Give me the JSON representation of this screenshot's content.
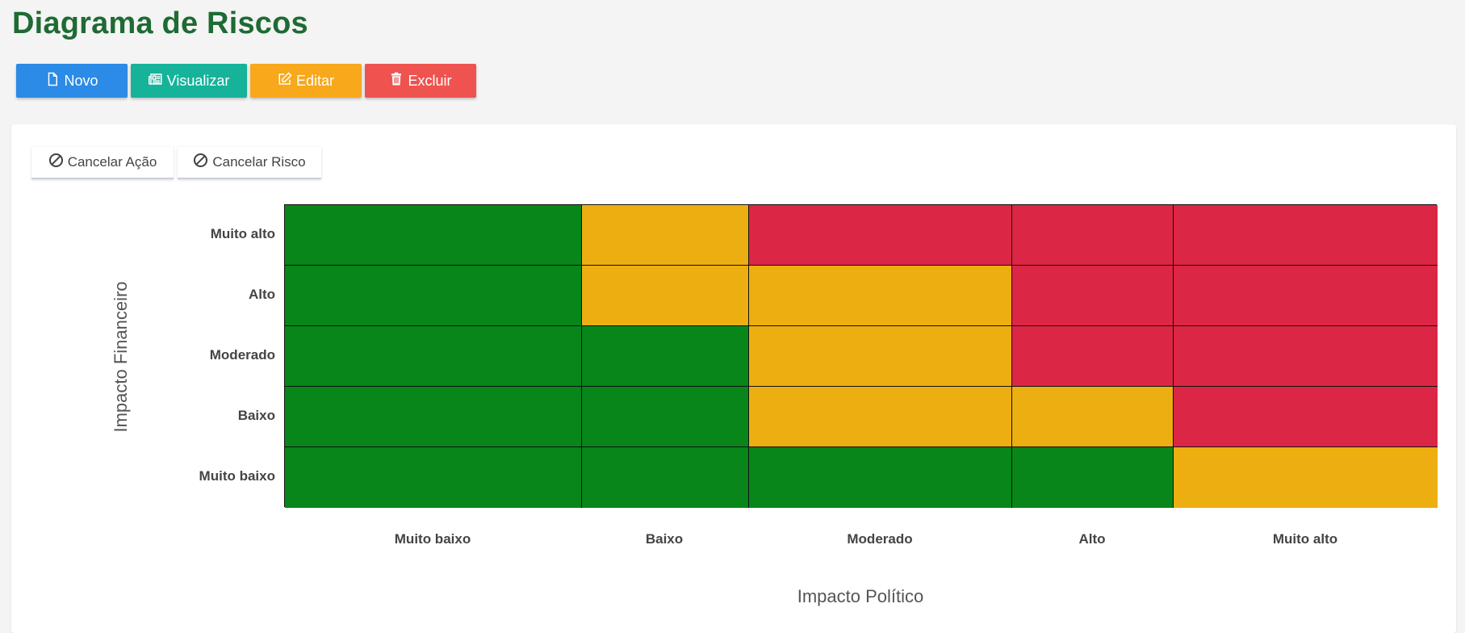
{
  "page": {
    "title": "Diagrama de Riscos"
  },
  "toolbar": {
    "novo_label": "Novo",
    "visualizar_label": "Visualizar",
    "editar_label": "Editar",
    "excluir_label": "Excluir"
  },
  "card_actions": {
    "cancelar_acao_label": "Cancelar Ação",
    "cancelar_risco_label": "Cancelar Risco"
  },
  "colors": {
    "low": "#08861a",
    "medium": "#ecae10",
    "high": "#dc2645",
    "title": "#1e6b33",
    "novo": "#2b8be6",
    "visualizar": "#16b39a",
    "editar": "#f7a81b",
    "excluir": "#ef5350"
  },
  "chart_data": {
    "type": "heatmap",
    "title": "",
    "xlabel": "Impacto Político",
    "ylabel": "Impacto Financeiro",
    "x_categories": [
      "Muito baixo",
      "Baixo",
      "Moderado",
      "Alto",
      "Muito alto"
    ],
    "y_categories": [
      "Muito alto",
      "Alto",
      "Moderado",
      "Baixo",
      "Muito baixo"
    ],
    "levels": [
      "low",
      "medium",
      "high"
    ],
    "cells": [
      [
        "low",
        "medium",
        "high",
        "high",
        "high"
      ],
      [
        "low",
        "medium",
        "medium",
        "high",
        "high"
      ],
      [
        "low",
        "low",
        "medium",
        "high",
        "high"
      ],
      [
        "low",
        "low",
        "medium",
        "medium",
        "high"
      ],
      [
        "low",
        "low",
        "low",
        "low",
        "medium"
      ]
    ],
    "legend": "none",
    "grid": true
  }
}
